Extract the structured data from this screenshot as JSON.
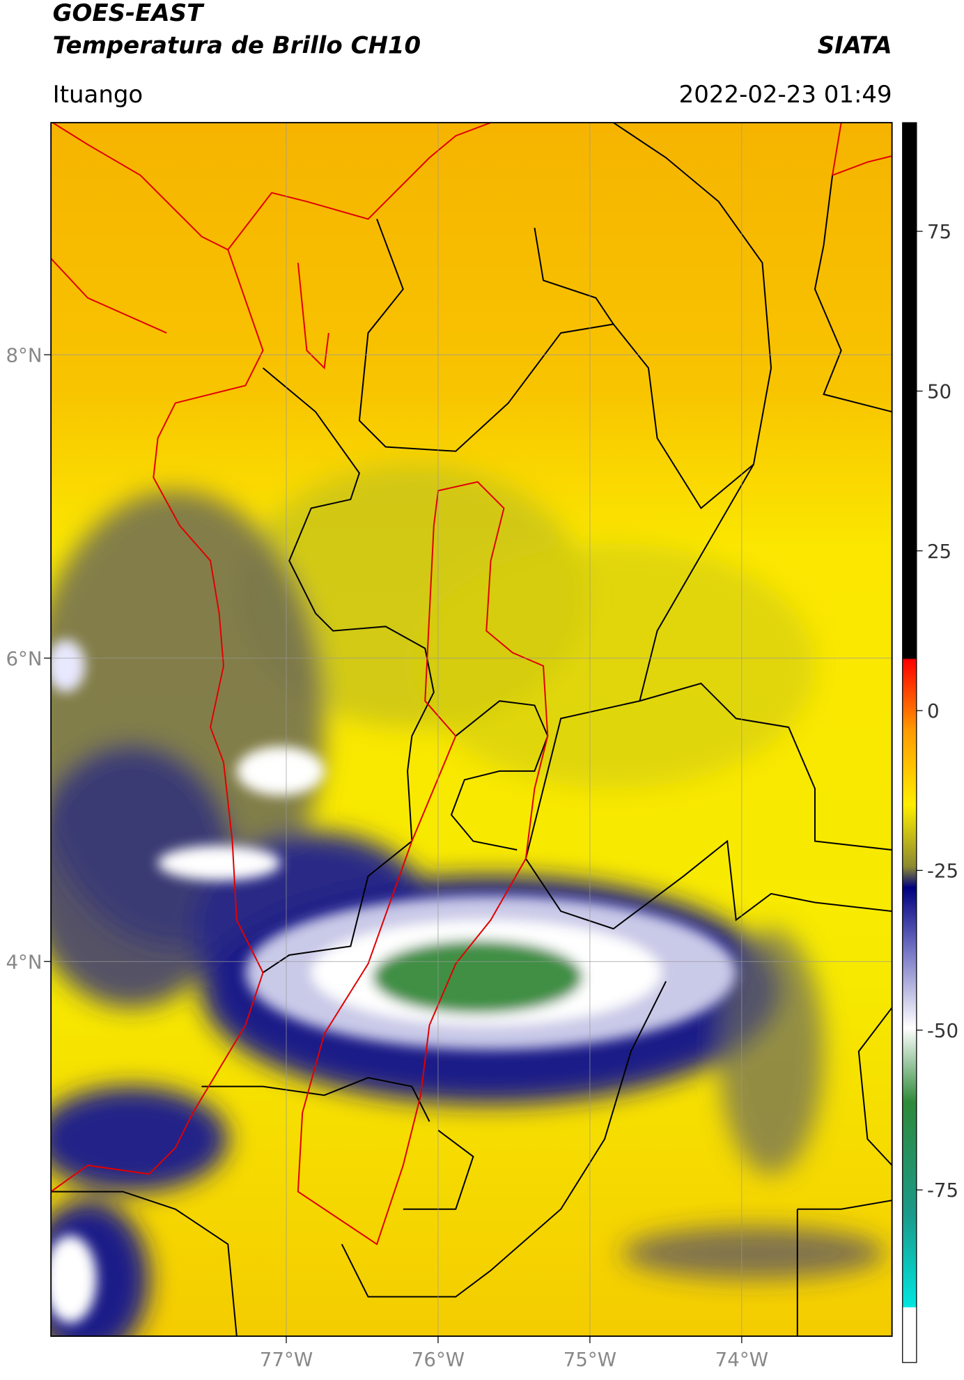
{
  "chart_data": {
    "type": "map",
    "title": "GOES-EAST",
    "subtitle": "Temperatura de Brillo CH10",
    "source": "SIATA",
    "location": "Ituango",
    "datetime": "2022-02-23 01:49",
    "xlim": [
      -78.55,
      -73.01
    ],
    "ylim": [
      1.53,
      9.53
    ],
    "xticks": [
      {
        "value": -77,
        "label": "77°W"
      },
      {
        "value": -76,
        "label": "76°W"
      },
      {
        "value": -75,
        "label": "75°W"
      },
      {
        "value": -74,
        "label": "74°W"
      }
    ],
    "yticks": [
      {
        "value": 8,
        "label": "8°N"
      },
      {
        "value": 6,
        "label": "6°N"
      },
      {
        "value": 4,
        "label": "4°N"
      }
    ],
    "grid": true,
    "colorbar": {
      "lim": [
        -102,
        92
      ],
      "ticks": [
        75,
        50,
        25,
        0,
        -25,
        -50,
        -75
      ]
    }
  }
}
